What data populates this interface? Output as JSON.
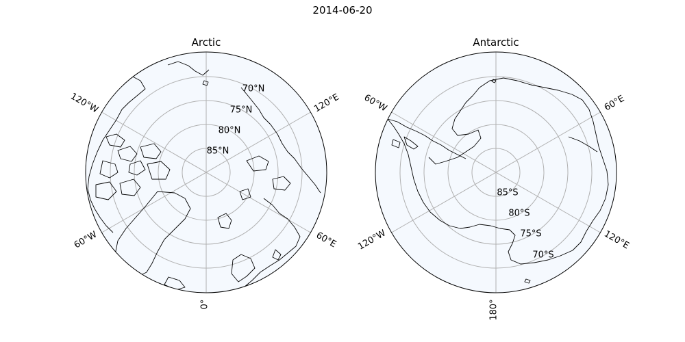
{
  "figure": {
    "title": "2014-06-20"
  },
  "arctic": {
    "title": "Arctic",
    "lat_labels": [
      "85°N",
      "80°N",
      "75°N",
      "70°N"
    ],
    "lon_labels": {
      "w120": "120°W",
      "e120": "120°E",
      "w60": "60°W",
      "e60": "60°E",
      "zero": "0°"
    }
  },
  "antarctic": {
    "title": "Antarctic",
    "lat_labels": [
      "85°S",
      "80°S",
      "75°S",
      "70°S"
    ],
    "lon_labels": {
      "w60": "60°W",
      "e60": "60°E",
      "w120": "120°W",
      "e120": "120°E",
      "dateline": "180°"
    }
  },
  "colors": {
    "ocean": "#f5f9fe",
    "gridline": "#b0b0b0",
    "coastline": "#000000"
  }
}
